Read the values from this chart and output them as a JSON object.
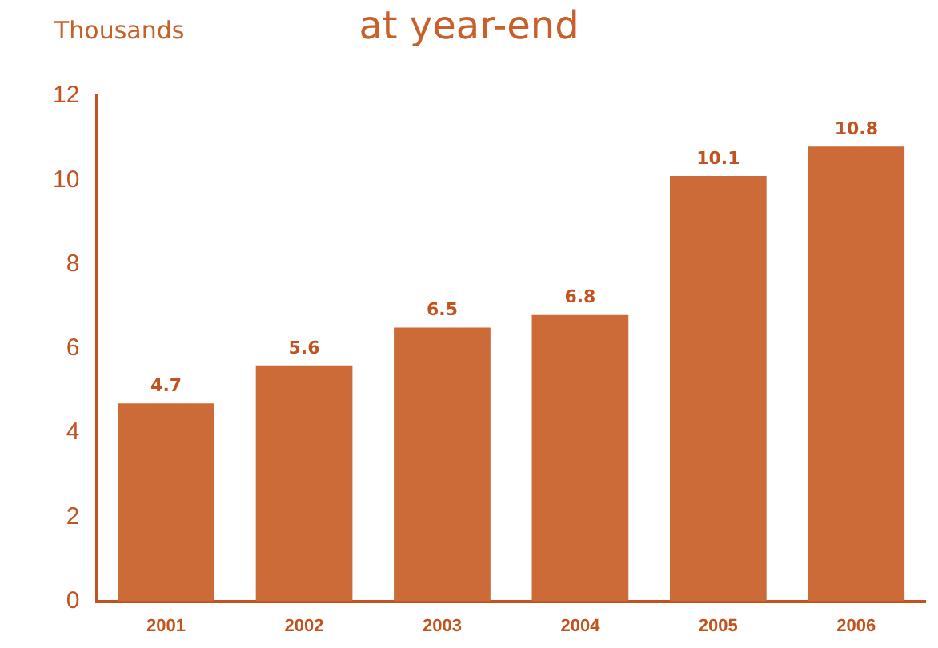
{
  "chart_data": {
    "type": "bar",
    "title": "at year-end",
    "ylabel": "Thousands",
    "categories": [
      "2001",
      "2002",
      "2003",
      "2004",
      "2005",
      "2006"
    ],
    "values": [
      4.7,
      5.6,
      6.5,
      6.8,
      10.1,
      10.8
    ],
    "color": "#cc6a38",
    "ylim": [
      0,
      12
    ],
    "yticks": [
      0,
      2,
      4,
      6,
      8,
      10,
      12
    ],
    "grid": false,
    "legend": false,
    "data_labels": true
  }
}
